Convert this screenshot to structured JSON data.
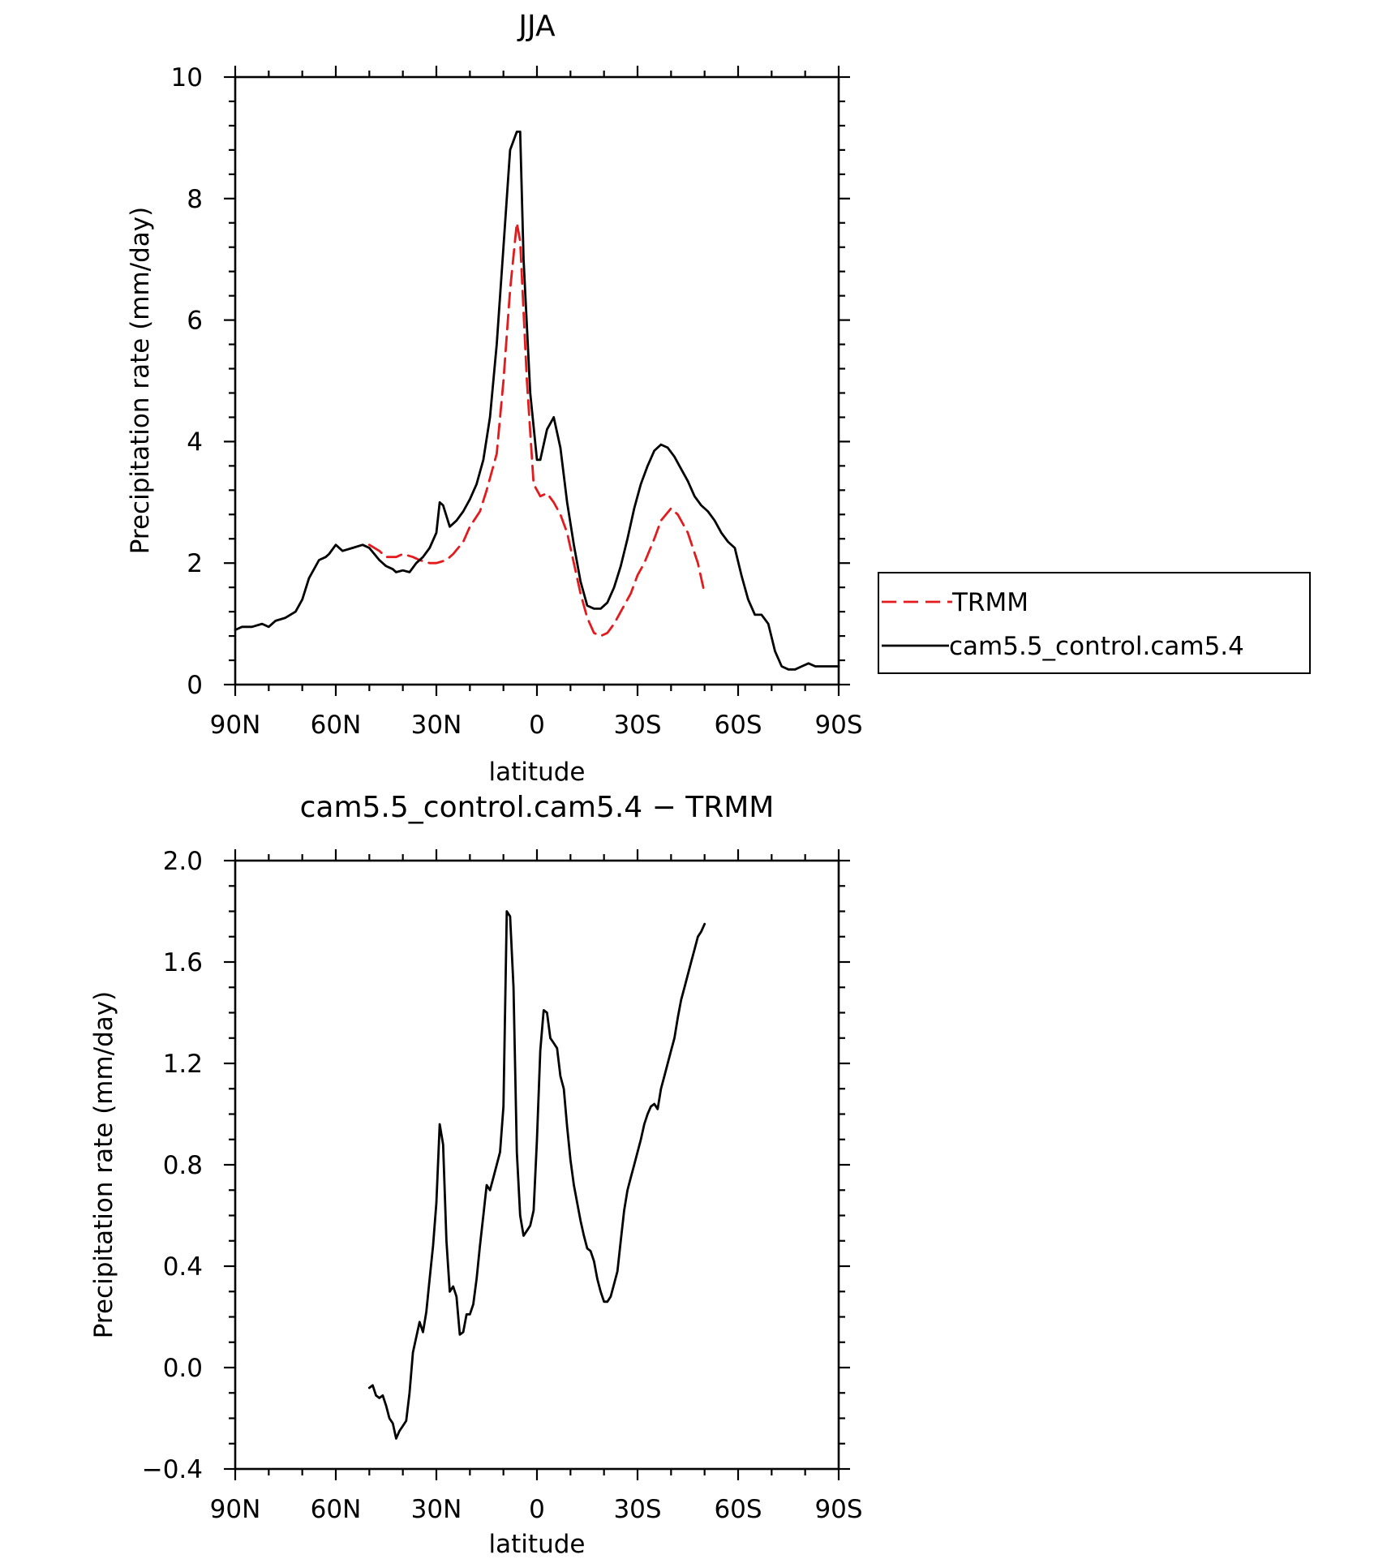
{
  "chart_data": [
    {
      "type": "line",
      "title": "JJA",
      "xlabel": "latitude",
      "ylabel": "Precipitation rate (mm/day)",
      "xlim": [
        90,
        -90
      ],
      "ylim": [
        0,
        10
      ],
      "x_ticks": [
        90,
        60,
        30,
        0,
        -30,
        -60,
        -90
      ],
      "x_tick_labels": [
        "90N",
        "60N",
        "30N",
        "0",
        "30S",
        "60S",
        "90S"
      ],
      "y_ticks": [
        0,
        2,
        4,
        6,
        8,
        10
      ],
      "y_tick_labels": [
        "0",
        "2",
        "4",
        "6",
        "8",
        "10"
      ],
      "legend": {
        "position": "right",
        "entries": [
          {
            "label": "TRMM",
            "color": "#e41a1c",
            "style": "dashed"
          },
          {
            "label": "cam5.5_control.cam5.4",
            "color": "#000000",
            "style": "solid"
          }
        ]
      },
      "series": [
        {
          "name": "TRMM",
          "color": "#e41a1c",
          "style": "dashed",
          "x": [
            50,
            47,
            45,
            42,
            40,
            37,
            35,
            32,
            30,
            27,
            25,
            22,
            20,
            17,
            15,
            12,
            10,
            8,
            6,
            5,
            3,
            1,
            -1,
            -3,
            -5,
            -7,
            -9,
            -11,
            -13,
            -15,
            -17,
            -19,
            -21,
            -23,
            -25,
            -28,
            -30,
            -32,
            -35,
            -37,
            -40,
            -42,
            -45,
            -48,
            -50
          ],
          "values": [
            2.3,
            2.2,
            2.1,
            2.1,
            2.15,
            2.1,
            2.05,
            2.0,
            2.0,
            2.05,
            2.15,
            2.35,
            2.6,
            2.85,
            3.2,
            3.8,
            5.0,
            6.5,
            7.6,
            7.3,
            5.0,
            3.3,
            3.1,
            3.15,
            3.0,
            2.8,
            2.5,
            2.0,
            1.5,
            1.1,
            0.85,
            0.8,
            0.85,
            1.0,
            1.2,
            1.5,
            1.8,
            2.0,
            2.4,
            2.7,
            2.9,
            2.8,
            2.5,
            2.0,
            1.5
          ]
        },
        {
          "name": "cam5.5_control.cam5.4",
          "color": "#000000",
          "style": "solid",
          "x": [
            90,
            88,
            85,
            82,
            80,
            78,
            75,
            72,
            70,
            68,
            65,
            63,
            62,
            60,
            58,
            55,
            52,
            50,
            47,
            45,
            43,
            42,
            40,
            38,
            36,
            34,
            32,
            30,
            29,
            28,
            26,
            24,
            22,
            20,
            18,
            16,
            14,
            12,
            10,
            8,
            6,
            5,
            4,
            2,
            0,
            -1,
            -3,
            -5,
            -7,
            -9,
            -11,
            -13,
            -15,
            -17,
            -19,
            -21,
            -23,
            -25,
            -27,
            -29,
            -31,
            -33,
            -35,
            -37,
            -39,
            -41,
            -43,
            -45,
            -47,
            -49,
            -51,
            -53,
            -55,
            -57,
            -59,
            -61,
            -63,
            -65,
            -67,
            -69,
            -71,
            -73,
            -75,
            -77,
            -79,
            -81,
            -83,
            -85,
            -87,
            -89,
            -90
          ],
          "values": [
            0.9,
            0.95,
            0.95,
            1.0,
            0.95,
            1.05,
            1.1,
            1.2,
            1.4,
            1.75,
            2.05,
            2.1,
            2.15,
            2.3,
            2.2,
            2.25,
            2.3,
            2.25,
            2.05,
            1.95,
            1.9,
            1.85,
            1.88,
            1.85,
            2.0,
            2.1,
            2.25,
            2.5,
            3.0,
            2.95,
            2.6,
            2.7,
            2.85,
            3.05,
            3.3,
            3.7,
            4.4,
            5.6,
            7.2,
            8.8,
            9.1,
            9.1,
            7.0,
            4.8,
            3.7,
            3.7,
            4.2,
            4.4,
            3.9,
            3.0,
            2.3,
            1.7,
            1.3,
            1.25,
            1.25,
            1.35,
            1.6,
            1.95,
            2.4,
            2.9,
            3.3,
            3.6,
            3.85,
            3.95,
            3.9,
            3.75,
            3.55,
            3.35,
            3.1,
            2.95,
            2.85,
            2.7,
            2.5,
            2.35,
            2.25,
            1.8,
            1.4,
            1.15,
            1.15,
            1.0,
            0.55,
            0.3,
            0.25,
            0.25,
            0.3,
            0.35,
            0.3,
            0.3,
            0.3,
            0.3,
            0.3
          ]
        }
      ]
    },
    {
      "type": "line",
      "title": "cam5.5_control.cam5.4 − TRMM",
      "xlabel": "latitude",
      "ylabel": "Precipitation rate (mm/day)",
      "xlim": [
        90,
        -90
      ],
      "ylim": [
        -0.4,
        2.0
      ],
      "x_ticks": [
        90,
        60,
        30,
        0,
        -30,
        -60,
        -90
      ],
      "x_tick_labels": [
        "90N",
        "60N",
        "30N",
        "0",
        "30S",
        "60S",
        "90S"
      ],
      "y_ticks": [
        -0.4,
        0.0,
        0.4,
        0.8,
        1.2,
        1.6,
        2.0
      ],
      "y_tick_labels": [
        "−0.4",
        "0.0",
        "0.4",
        "0.8",
        "1.2",
        "1.6",
        "2.0"
      ],
      "series": [
        {
          "name": "cam5.5_control.cam5.4 − TRMM",
          "color": "#000000",
          "style": "solid",
          "x": [
            50,
            49,
            48,
            47,
            46,
            45,
            44,
            43,
            42,
            41,
            40,
            39,
            38,
            37,
            36,
            35,
            34,
            33,
            32,
            31,
            30,
            29,
            28,
            27,
            26,
            25,
            24,
            23,
            22,
            21,
            20,
            19,
            18,
            17,
            16,
            15,
            14,
            13,
            12,
            11,
            10,
            9,
            8,
            7,
            6,
            5,
            4,
            3,
            2,
            1,
            0,
            -1,
            -2,
            -3,
            -4,
            -5,
            -6,
            -7,
            -8,
            -9,
            -10,
            -11,
            -12,
            -13,
            -14,
            -15,
            -16,
            -17,
            -18,
            -19,
            -20,
            -21,
            -22,
            -23,
            -24,
            -25,
            -26,
            -27,
            -28,
            -29,
            -30,
            -31,
            -32,
            -33,
            -34,
            -35,
            -36,
            -37,
            -38,
            -39,
            -40,
            -41,
            -42,
            -43,
            -44,
            -45,
            -46,
            -47,
            -48,
            -49,
            -50
          ],
          "values": [
            -0.08,
            -0.07,
            -0.11,
            -0.12,
            -0.11,
            -0.15,
            -0.2,
            -0.22,
            -0.28,
            -0.25,
            -0.23,
            -0.21,
            -0.1,
            0.06,
            0.12,
            0.18,
            0.14,
            0.22,
            0.35,
            0.48,
            0.65,
            0.96,
            0.88,
            0.5,
            0.3,
            0.32,
            0.28,
            0.13,
            0.14,
            0.21,
            0.21,
            0.25,
            0.35,
            0.48,
            0.6,
            0.72,
            0.7,
            0.75,
            0.8,
            0.85,
            1.03,
            1.8,
            1.78,
            1.5,
            0.85,
            0.6,
            0.52,
            0.54,
            0.56,
            0.62,
            0.9,
            1.25,
            1.41,
            1.4,
            1.3,
            1.28,
            1.26,
            1.15,
            1.1,
            0.95,
            0.82,
            0.72,
            0.65,
            0.58,
            0.52,
            0.47,
            0.46,
            0.42,
            0.35,
            0.3,
            0.26,
            0.26,
            0.28,
            0.33,
            0.38,
            0.5,
            0.62,
            0.7,
            0.75,
            0.8,
            0.85,
            0.9,
            0.96,
            1.0,
            1.03,
            1.04,
            1.02,
            1.1,
            1.15,
            1.2,
            1.25,
            1.3,
            1.38,
            1.45,
            1.5,
            1.55,
            1.6,
            1.65,
            1.7,
            1.72,
            1.75
          ]
        }
      ]
    }
  ]
}
